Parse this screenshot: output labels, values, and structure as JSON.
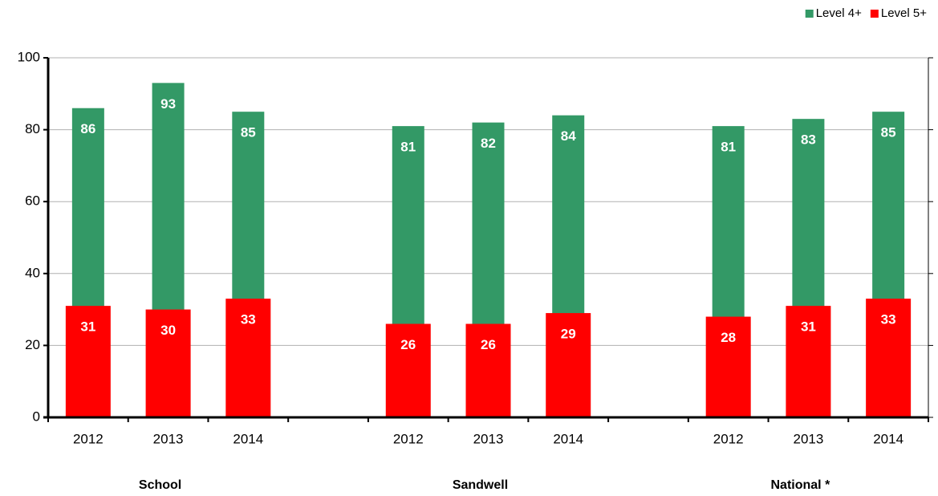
{
  "chart_data": {
    "type": "bar",
    "overlap": true,
    "categories": [
      "2012",
      "2013",
      "2014",
      null,
      "2012",
      "2013",
      "2014",
      null,
      "2012",
      "2013",
      "2014"
    ],
    "group_labels": [
      "School",
      "Sandwell",
      "National *"
    ],
    "series": [
      {
        "name": "Level 4+",
        "color": "#339966",
        "values": [
          86,
          93,
          85,
          null,
          81,
          82,
          84,
          null,
          81,
          83,
          85
        ]
      },
      {
        "name": "Level 5+",
        "color": "#ff0000",
        "values": [
          31,
          30,
          33,
          null,
          26,
          26,
          29,
          null,
          28,
          31,
          33
        ]
      }
    ],
    "ylim": [
      0,
      100
    ],
    "yticks": [
      0,
      20,
      40,
      60,
      80,
      100
    ],
    "grid": true,
    "legend": "top-right"
  }
}
